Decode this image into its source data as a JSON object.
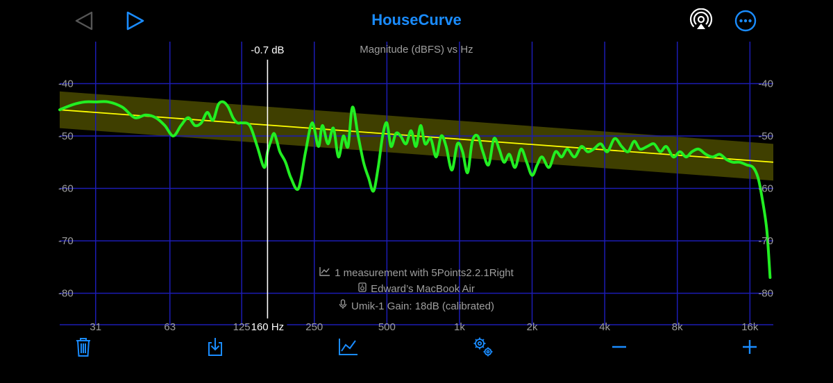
{
  "header": {
    "title": "HouseCurve",
    "back_icon": "triangle-left-icon",
    "forward_icon": "triangle-right-icon",
    "airplay_icon": "airplay-icon",
    "more_icon": "ellipsis-circle-icon",
    "accent": "#1a8cff",
    "inactive": "#555555"
  },
  "info": {
    "measurement": "1 measurement with 5Points2.2.1Right",
    "device": "Edward’s MacBook Air",
    "mic": "Umik-1  Gain: 18dB (calibrated)"
  },
  "cursor": {
    "freq_hz": 160,
    "freq_label": "160 Hz",
    "delta_label": "-0.7 dB"
  },
  "toolbar": {
    "items": [
      "trash-icon",
      "download-icon",
      "chart-icon",
      "gears-icon",
      "minus-icon",
      "plus-icon"
    ]
  },
  "chart_data": {
    "type": "line",
    "title": "Magnitude (dBFS) vs Hz",
    "xscale": "log",
    "xlim": [
      22,
      20000
    ],
    "ylim": [
      -86,
      -32
    ],
    "x_ticks": [
      31,
      63,
      125,
      250,
      500,
      1000,
      2000,
      4000,
      8000,
      16000
    ],
    "x_tick_labels": [
      "31",
      "63",
      "125",
      "250",
      "500",
      "1k",
      "2k",
      "4k",
      "8k",
      "16k"
    ],
    "y_ticks": [
      -40,
      -50,
      -60,
      -70,
      -80
    ],
    "y_tick_labels": [
      "-40",
      "-50",
      "-60",
      "-70",
      "-80"
    ],
    "grid": true,
    "grid_color": "#1c1cb4",
    "target": {
      "color": "#ffff00",
      "band_color": "#4a4a00",
      "band_halfwidth_db": 3.5,
      "x": [
        22,
        20000
      ],
      "y": [
        -45,
        -55
      ]
    },
    "measurement": {
      "color": "#22ee22",
      "x": [
        22,
        25,
        28,
        31,
        35,
        40,
        45,
        50,
        55,
        60,
        65,
        70,
        75,
        80,
        85,
        90,
        95,
        100,
        105,
        110,
        115,
        120,
        125,
        135,
        145,
        155,
        160,
        165,
        170,
        175,
        180,
        190,
        200,
        215,
        230,
        245,
        260,
        270,
        285,
        300,
        315,
        330,
        345,
        360,
        380,
        400,
        420,
        440,
        460,
        480,
        500,
        520,
        545,
        570,
        600,
        630,
        660,
        690,
        720,
        760,
        800,
        840,
        880,
        930,
        980,
        1030,
        1080,
        1130,
        1190,
        1250,
        1320,
        1390,
        1460,
        1530,
        1610,
        1700,
        1800,
        1900,
        2000,
        2100,
        2200,
        2350,
        2500,
        2650,
        2800,
        3000,
        3200,
        3400,
        3600,
        3850,
        4100,
        4400,
        4700,
        5000,
        5300,
        5600,
        6000,
        6400,
        6800,
        7200,
        7700,
        8200,
        8700,
        9200,
        9800,
        10500,
        11200,
        12000,
        12800,
        13600,
        14500,
        15500,
        16500,
        17300,
        18000,
        18800,
        19400
      ],
      "y": [
        -45,
        -44,
        -43.5,
        -43.5,
        -43.5,
        -44.5,
        -46.5,
        -46,
        -46.5,
        -48,
        -50,
        -48,
        -46.5,
        -48,
        -47.5,
        -45.5,
        -47,
        -44,
        -43.5,
        -44.5,
        -46.5,
        -47.5,
        -47.5,
        -48,
        -52,
        -56,
        -53,
        -51,
        -49.5,
        -51,
        -53,
        -55,
        -58,
        -60,
        -53,
        -47.5,
        -52,
        -48,
        -51.5,
        -48.5,
        -54,
        -50,
        -52,
        -44.5,
        -50,
        -55,
        -58,
        -60.5,
        -56,
        -50,
        -47.5,
        -52,
        -49.5,
        -50,
        -51.5,
        -49,
        -52,
        -48,
        -51.5,
        -50.5,
        -54,
        -50,
        -52,
        -56.5,
        -51.5,
        -53,
        -57,
        -51,
        -50,
        -53,
        -55.5,
        -50.5,
        -52.5,
        -55,
        -53.5,
        -56,
        -52.5,
        -55,
        -57.5,
        -55.5,
        -54,
        -56,
        -53,
        -54,
        -52.5,
        -54,
        -52,
        -53,
        -52.5,
        -51.5,
        -53,
        -50.5,
        -52,
        -53,
        -51,
        -52.5,
        -52,
        -51.5,
        -53,
        -52,
        -54,
        -53,
        -54,
        -53,
        -52.5,
        -53.5,
        -54,
        -53.5,
        -54.5,
        -55,
        -55,
        -55.5,
        -56,
        -58,
        -62,
        -68,
        -77
      ]
    }
  }
}
